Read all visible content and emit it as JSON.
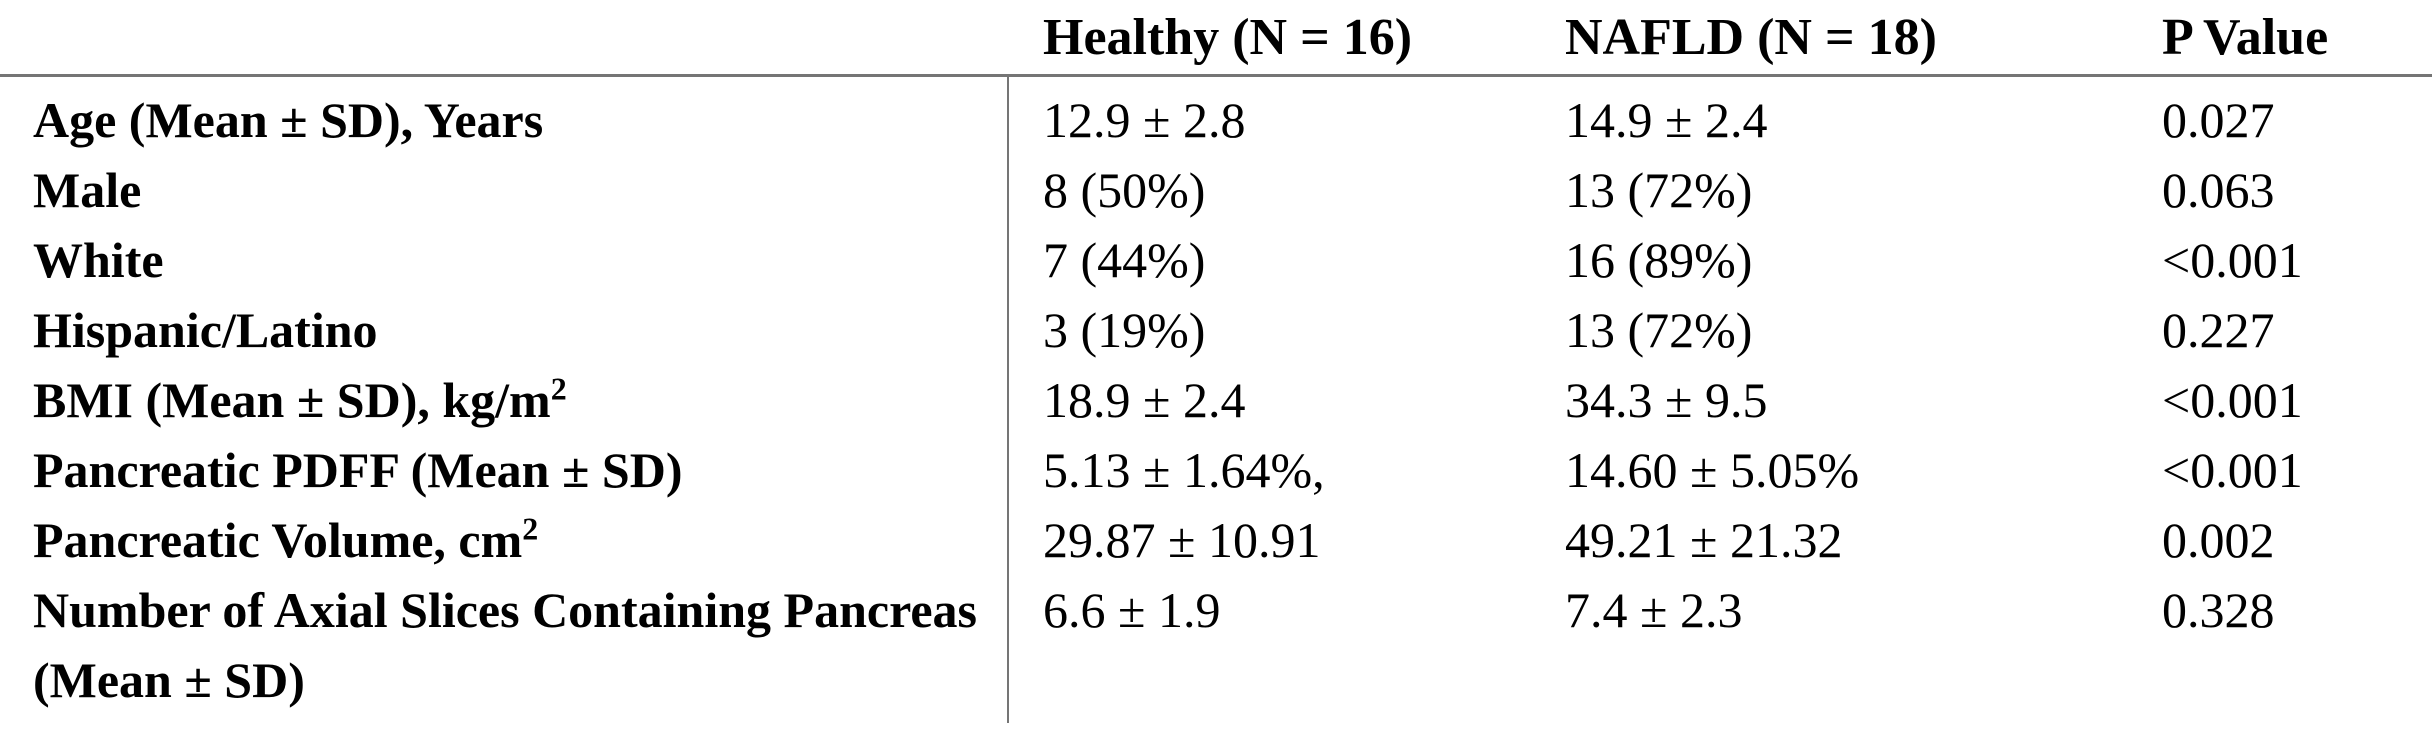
{
  "table": {
    "description": "Cohort demographics and pancreatic imaging characteristics comparing healthy and NAFLD pediatric groups",
    "colors": {
      "background": "#ffffff",
      "text": "#000000",
      "rule": "#757575"
    },
    "columns": {
      "label": "",
      "healthy": "Healthy (N = 16)",
      "nafld": "NAFLD (N = 18)",
      "p": "P Value"
    },
    "rows": [
      {
        "label": "Age (Mean ± SD), Years",
        "healthy": "12.9 ± 2.8",
        "nafld": "14.9 ± 2.4",
        "p": "0.027"
      },
      {
        "label": "Male",
        "healthy": "8 (50%)",
        "nafld": "13 (72%)",
        "p": "0.063"
      },
      {
        "label": "White",
        "healthy": "7 (44%)",
        "nafld": "16 (89%)",
        "p": "<0.001"
      },
      {
        "label": "Hispanic/Latino",
        "healthy": "3 (19%)",
        "nafld": "13 (72%)",
        "p": "0.227"
      },
      {
        "label": "BMI (Mean ± SD), kg/m",
        "label_sup": "2",
        "healthy": "18.9 ± 2.4",
        "nafld": "34.3 ± 9.5",
        "p": "<0.001"
      },
      {
        "label": "Pancreatic PDFF (Mean ± SD)",
        "healthy": "5.13 ± 1.64%,",
        "nafld": "14.60 ± 5.05%",
        "p": "<0.001"
      },
      {
        "label": "Pancreatic Volume, cm",
        "label_sup": "2",
        "healthy": "29.87 ± 10.91",
        "nafld": "49.21 ± 21.32",
        "p": "0.002"
      },
      {
        "label": "Number of Axial Slices Containing Pancreas (Mean ± SD)",
        "healthy": "6.6 ± 1.9",
        "nafld": "7.4 ± 2.3",
        "p": "0.328"
      }
    ]
  }
}
